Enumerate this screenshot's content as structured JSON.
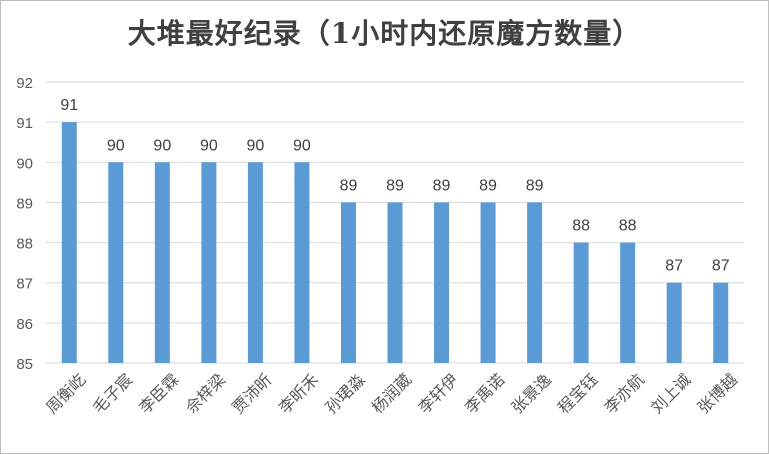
{
  "chart_data": {
    "type": "bar",
    "title": "大堆最好纪录（1小时内还原魔方数量）",
    "categories": [
      "周衡屹",
      "毛子宸",
      "李臣霖",
      "佘梓梁",
      "贾沛昕",
      "李昕禾",
      "孙珺淼",
      "杨润葳",
      "李轩伊",
      "李禹诺",
      "张景逸",
      "程宝钰",
      "李亦航",
      "刘上诚",
      "张博越"
    ],
    "values": [
      91,
      90,
      90,
      90,
      90,
      90,
      89,
      89,
      89,
      89,
      89,
      88,
      88,
      87,
      87
    ],
    "ylim": [
      85,
      92
    ],
    "yticks": [
      85,
      86,
      87,
      88,
      89,
      90,
      91,
      92
    ],
    "grid": true,
    "colors": {
      "bar": "#5b9bd5",
      "grid": "#d9d9d9",
      "text": "#404040",
      "axis": "#595959"
    }
  }
}
